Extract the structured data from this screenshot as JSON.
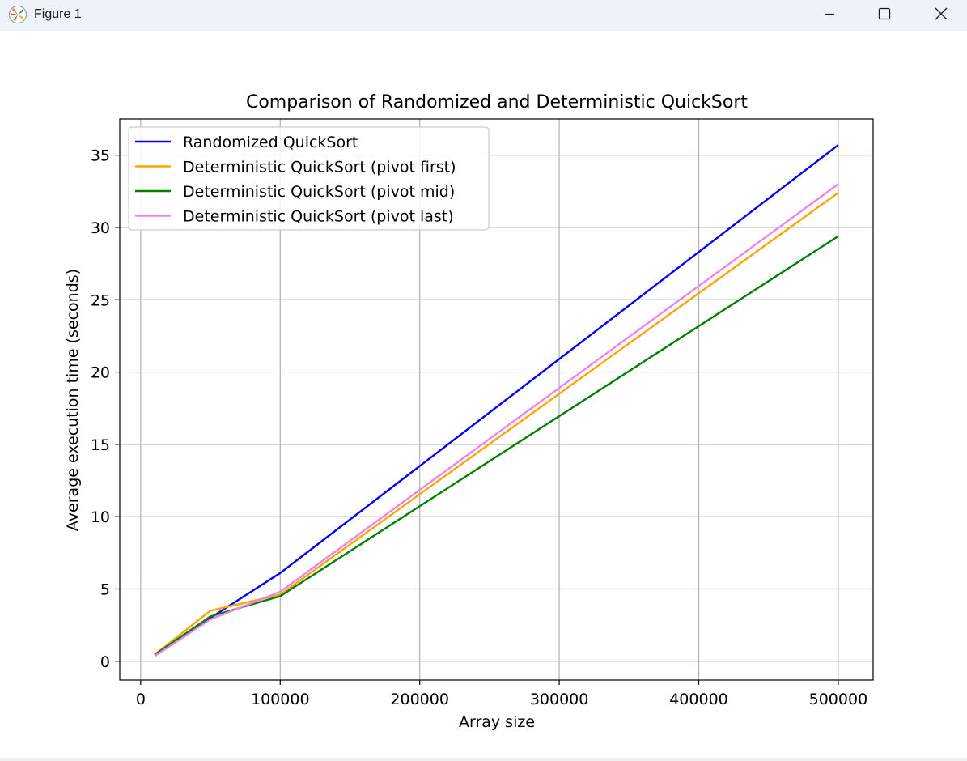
{
  "window": {
    "title": "Figure 1",
    "icon": "matplotlib-logo-icon",
    "controls": [
      "minimize-icon",
      "maximize-icon",
      "close-icon"
    ]
  },
  "chart_data": {
    "type": "line",
    "title": "Comparison of Randomized and Deterministic QuickSort",
    "xlabel": "Array size",
    "ylabel": "Average execution time (seconds)",
    "xlim": [
      -15000,
      525000
    ],
    "ylim": [
      -1.3,
      37.5
    ],
    "xticks": [
      0,
      100000,
      200000,
      300000,
      400000,
      500000
    ],
    "yticks": [
      0,
      5,
      10,
      15,
      20,
      25,
      30,
      35
    ],
    "grid": true,
    "legend_position": "upper left",
    "x": [
      10000,
      50000,
      100000,
      500000
    ],
    "series": [
      {
        "name": "Randomized QuickSort",
        "color": "#0000ff",
        "values": [
          0.45,
          3.0,
          6.1,
          35.7
        ]
      },
      {
        "name": "Deterministic QuickSort (pivot first)",
        "color": "#ffa500",
        "values": [
          0.45,
          3.5,
          4.6,
          32.4
        ]
      },
      {
        "name": "Deterministic QuickSort (pivot mid)",
        "color": "#008000",
        "values": [
          0.45,
          3.1,
          4.5,
          29.4
        ]
      },
      {
        "name": "Deterministic QuickSort (pivot last)",
        "color": "#ee82ee",
        "values": [
          0.35,
          2.9,
          4.8,
          33.0
        ]
      }
    ]
  }
}
